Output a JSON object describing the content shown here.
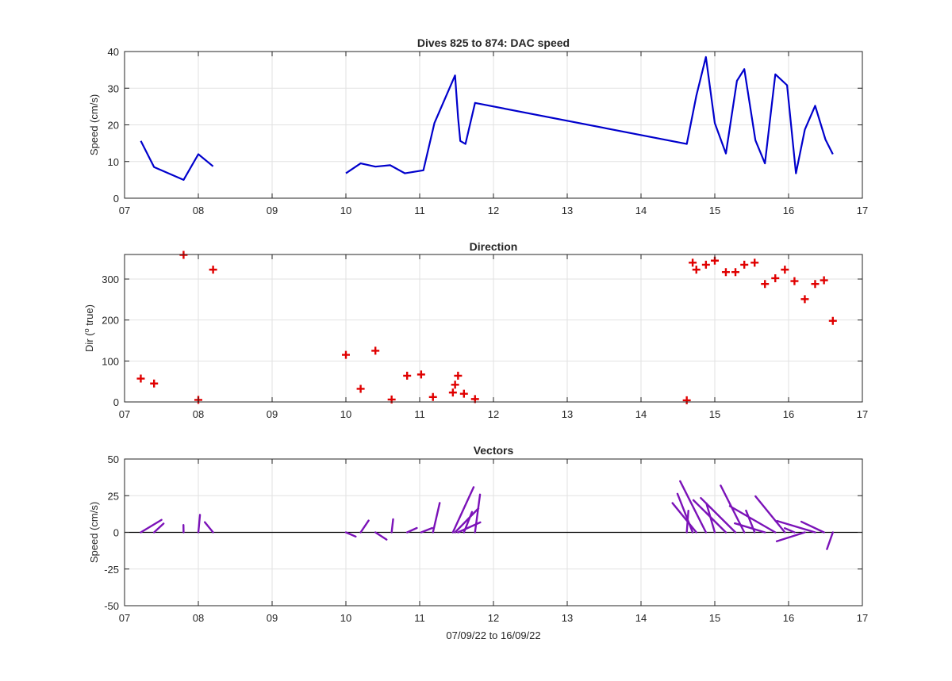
{
  "figure": {
    "xlabel": "07/09/22 to 16/09/22",
    "x_tick_labels": [
      "07",
      "08",
      "09",
      "10",
      "11",
      "12",
      "13",
      "14",
      "15",
      "16",
      "17"
    ],
    "colors": {
      "speed_line": "#0000cc",
      "direction_marker": "#e00000",
      "vector_line": "#7b12b8",
      "grid": "#e2e2e2",
      "axes": "#262626",
      "zero_line": "#000000"
    }
  },
  "chart_data": [
    {
      "type": "line",
      "title": "Dives 825 to 874: DAC speed",
      "xlabel": "",
      "ylabel": "Speed (cm/s)",
      "xlim": [
        7,
        17
      ],
      "ylim": [
        0,
        40
      ],
      "grid": true,
      "y_ticks": [
        0,
        10,
        20,
        30,
        40
      ],
      "y_tick_labels": [
        "0",
        "10",
        "20",
        "30",
        "40"
      ],
      "segments": [
        [
          [
            7.22,
            15.6
          ],
          [
            7.4,
            8.5
          ],
          [
            7.8,
            5.0
          ],
          [
            8.0,
            12.0
          ],
          [
            8.2,
            8.7
          ]
        ],
        [
          [
            10.0,
            6.8
          ],
          [
            10.2,
            9.5
          ],
          [
            10.4,
            8.6
          ],
          [
            10.6,
            9.0
          ],
          [
            10.8,
            6.8
          ],
          [
            11.05,
            7.6
          ],
          [
            11.2,
            20.5
          ],
          [
            11.48,
            33.5
          ],
          [
            11.52,
            22.0
          ],
          [
            11.55,
            15.6
          ],
          [
            11.62,
            14.8
          ],
          [
            11.75,
            26.0
          ],
          [
            14.62,
            14.8
          ],
          [
            14.75,
            28.0
          ],
          [
            14.88,
            38.5
          ],
          [
            15.0,
            20.5
          ],
          [
            15.15,
            12.2
          ],
          [
            15.3,
            32.0
          ],
          [
            15.4,
            35.2
          ],
          [
            15.55,
            15.8
          ],
          [
            15.68,
            9.5
          ],
          [
            15.82,
            33.8
          ],
          [
            15.98,
            30.8
          ],
          [
            16.1,
            6.8
          ],
          [
            16.22,
            18.7
          ],
          [
            16.36,
            25.2
          ],
          [
            16.5,
            16.0
          ],
          [
            16.6,
            12.0
          ]
        ]
      ]
    },
    {
      "type": "scatter",
      "title": "Direction",
      "xlabel": "",
      "ylabel_parts": [
        "Dir (",
        "o",
        " true)"
      ],
      "xlim": [
        7,
        17
      ],
      "ylim": [
        0,
        360
      ],
      "grid": true,
      "y_ticks": [
        0,
        100,
        200,
        300
      ],
      "y_tick_labels": [
        "0",
        "100",
        "200",
        "300"
      ],
      "marker": "+",
      "points": [
        [
          7.22,
          57
        ],
        [
          7.4,
          45
        ],
        [
          7.8,
          359
        ],
        [
          8.0,
          5
        ],
        [
          8.2,
          323
        ],
        [
          10.0,
          115
        ],
        [
          10.2,
          32
        ],
        [
          10.4,
          125
        ],
        [
          10.62,
          6
        ],
        [
          10.83,
          64
        ],
        [
          11.02,
          67
        ],
        [
          11.18,
          12
        ],
        [
          11.45,
          23
        ],
        [
          11.48,
          42
        ],
        [
          11.52,
          64
        ],
        [
          11.6,
          20
        ],
        [
          11.75,
          7
        ],
        [
          14.62,
          4
        ],
        [
          14.7,
          340
        ],
        [
          14.75,
          323
        ],
        [
          14.88,
          335
        ],
        [
          15.0,
          345
        ],
        [
          15.15,
          317
        ],
        [
          15.28,
          317
        ],
        [
          15.4,
          335
        ],
        [
          15.54,
          340
        ],
        [
          15.68,
          288
        ],
        [
          15.82,
          302
        ],
        [
          15.95,
          323
        ],
        [
          16.08,
          295
        ],
        [
          16.22,
          251
        ],
        [
          16.36,
          288
        ],
        [
          16.48,
          297
        ],
        [
          16.6,
          198
        ]
      ]
    },
    {
      "type": "vector",
      "title": "Vectors",
      "xlabel": "07/09/22 to 16/09/22",
      "ylabel": "Speed (cm/s)",
      "xlim": [
        7,
        17
      ],
      "ylim": [
        -50,
        50
      ],
      "grid": true,
      "y_ticks": [
        -50,
        -25,
        0,
        25,
        50
      ],
      "y_tick_labels": [
        "-50",
        "-25",
        "0",
        "25",
        "50"
      ],
      "x_per_cm_s": 0.0215,
      "vectors": [
        [
          7.22,
          15.6,
          57
        ],
        [
          7.4,
          8.5,
          45
        ],
        [
          7.8,
          5.0,
          359
        ],
        [
          8.0,
          12.0,
          5
        ],
        [
          8.2,
          8.7,
          323
        ],
        [
          10.0,
          6.8,
          115
        ],
        [
          10.2,
          9.5,
          32
        ],
        [
          10.4,
          8.6,
          125
        ],
        [
          10.62,
          9.0,
          6
        ],
        [
          10.83,
          6.8,
          64
        ],
        [
          11.02,
          7.6,
          67
        ],
        [
          11.18,
          20.5,
          12
        ],
        [
          11.45,
          33.5,
          23
        ],
        [
          11.48,
          22.0,
          42
        ],
        [
          11.52,
          15.6,
          64
        ],
        [
          11.6,
          14.8,
          20
        ],
        [
          11.75,
          26.0,
          7
        ],
        [
          14.62,
          14.8,
          4
        ],
        [
          14.7,
          28.0,
          340
        ],
        [
          14.75,
          25.0,
          323
        ],
        [
          14.88,
          38.5,
          335
        ],
        [
          15.0,
          20.5,
          345
        ],
        [
          15.15,
          30.0,
          317
        ],
        [
          15.28,
          32.0,
          317
        ],
        [
          15.4,
          35.2,
          335
        ],
        [
          15.54,
          15.8,
          340
        ],
        [
          15.68,
          20.0,
          288
        ],
        [
          15.82,
          33.8,
          302
        ],
        [
          15.95,
          30.8,
          323
        ],
        [
          16.08,
          6.8,
          295
        ],
        [
          16.22,
          18.7,
          251
        ],
        [
          16.36,
          25.2,
          288
        ],
        [
          16.48,
          16.0,
          297
        ],
        [
          16.6,
          12.0,
          198
        ]
      ]
    }
  ]
}
